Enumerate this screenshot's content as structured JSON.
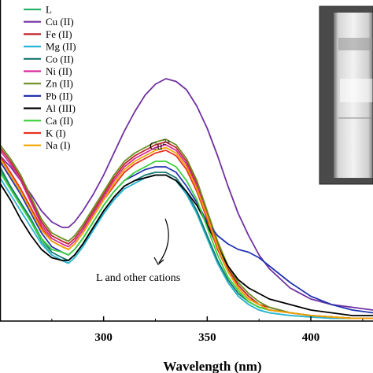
{
  "chart_data": {
    "type": "line",
    "xlabel": "Wavelength (nm)",
    "ylabel": "",
    "xlim": [
      250,
      430
    ],
    "ylim": [
      0,
      1
    ],
    "xticks": [
      300,
      350,
      400
    ],
    "legend_position": "top-left",
    "grid": false,
    "annotations": {
      "cu_peak_base": "Cu",
      "cu_peak_sup": "2+",
      "others": "L and other cations"
    },
    "inset": {
      "type": "photo",
      "content": "cuvette"
    },
    "x": [
      250,
      255,
      260,
      265,
      270,
      275,
      280,
      283,
      286,
      290,
      295,
      300,
      305,
      310,
      315,
      320,
      325,
      330,
      335,
      340,
      345,
      350,
      355,
      360,
      365,
      370,
      375,
      380,
      390,
      400,
      410,
      420,
      430
    ],
    "series": [
      {
        "name": "L",
        "color": "#2db36a",
        "values": [
          0.55,
          0.48,
          0.42,
          0.36,
          0.29,
          0.24,
          0.22,
          0.21,
          0.23,
          0.27,
          0.33,
          0.39,
          0.44,
          0.48,
          0.5,
          0.52,
          0.53,
          0.53,
          0.51,
          0.46,
          0.39,
          0.3,
          0.21,
          0.14,
          0.09,
          0.06,
          0.04,
          0.03,
          0.02,
          0.015,
          0.01,
          0.01,
          0.01
        ]
      },
      {
        "name": "Cu (II)",
        "color": "#7030a0",
        "values": [
          0.6,
          0.56,
          0.51,
          0.46,
          0.4,
          0.36,
          0.34,
          0.34,
          0.36,
          0.4,
          0.46,
          0.53,
          0.61,
          0.69,
          0.76,
          0.82,
          0.86,
          0.88,
          0.87,
          0.84,
          0.78,
          0.7,
          0.6,
          0.49,
          0.39,
          0.31,
          0.24,
          0.19,
          0.12,
          0.08,
          0.06,
          0.05,
          0.04
        ]
      },
      {
        "name": "Fe (II)",
        "color": "#c0272d",
        "values": [
          0.63,
          0.58,
          0.52,
          0.44,
          0.36,
          0.31,
          0.29,
          0.28,
          0.3,
          0.34,
          0.4,
          0.46,
          0.52,
          0.57,
          0.6,
          0.62,
          0.64,
          0.65,
          0.63,
          0.58,
          0.5,
          0.39,
          0.28,
          0.19,
          0.13,
          0.09,
          0.06,
          0.05,
          0.03,
          0.02,
          0.015,
          0.01,
          0.01
        ]
      },
      {
        "name": "Mg (II)",
        "color": "#2bb5d8",
        "values": [
          0.52,
          0.46,
          0.4,
          0.34,
          0.28,
          0.24,
          0.22,
          0.21,
          0.23,
          0.27,
          0.33,
          0.39,
          0.44,
          0.48,
          0.5,
          0.52,
          0.53,
          0.53,
          0.51,
          0.46,
          0.39,
          0.3,
          0.21,
          0.14,
          0.09,
          0.06,
          0.04,
          0.03,
          0.02,
          0.015,
          0.01,
          0.01,
          0.01
        ]
      },
      {
        "name": "Co (II)",
        "color": "#16766f",
        "values": [
          0.56,
          0.49,
          0.43,
          0.37,
          0.3,
          0.25,
          0.23,
          0.22,
          0.24,
          0.28,
          0.34,
          0.4,
          0.45,
          0.49,
          0.51,
          0.53,
          0.54,
          0.54,
          0.52,
          0.47,
          0.4,
          0.31,
          0.22,
          0.15,
          0.1,
          0.07,
          0.05,
          0.04,
          0.03,
          0.02,
          0.015,
          0.01,
          0.01
        ]
      },
      {
        "name": "Ni (II)",
        "color": "#d62b9a",
        "values": [
          0.62,
          0.57,
          0.51,
          0.43,
          0.35,
          0.3,
          0.28,
          0.27,
          0.29,
          0.33,
          0.39,
          0.45,
          0.51,
          0.56,
          0.59,
          0.61,
          0.63,
          0.64,
          0.62,
          0.57,
          0.49,
          0.38,
          0.27,
          0.18,
          0.12,
          0.08,
          0.06,
          0.04,
          0.03,
          0.02,
          0.015,
          0.01,
          0.01
        ]
      },
      {
        "name": "Zn (II)",
        "color": "#6b8e23",
        "values": [
          0.64,
          0.59,
          0.53,
          0.45,
          0.37,
          0.32,
          0.3,
          0.29,
          0.31,
          0.35,
          0.41,
          0.47,
          0.53,
          0.58,
          0.61,
          0.63,
          0.65,
          0.66,
          0.64,
          0.59,
          0.51,
          0.4,
          0.29,
          0.2,
          0.14,
          0.1,
          0.07,
          0.05,
          0.03,
          0.02,
          0.015,
          0.01,
          0.01
        ]
      },
      {
        "name": "Pb (II)",
        "color": "#2333b0",
        "values": [
          0.58,
          0.52,
          0.46,
          0.39,
          0.32,
          0.27,
          0.25,
          0.24,
          0.26,
          0.3,
          0.36,
          0.42,
          0.47,
          0.51,
          0.53,
          0.55,
          0.56,
          0.56,
          0.54,
          0.49,
          0.43,
          0.36,
          0.31,
          0.28,
          0.26,
          0.25,
          0.23,
          0.2,
          0.14,
          0.09,
          0.06,
          0.04,
          0.03
        ]
      },
      {
        "name": "Al (III)",
        "color": "#000000",
        "values": [
          0.5,
          0.44,
          0.37,
          0.31,
          0.26,
          0.23,
          0.22,
          0.22,
          0.24,
          0.28,
          0.34,
          0.4,
          0.45,
          0.49,
          0.51,
          0.52,
          0.53,
          0.53,
          0.51,
          0.47,
          0.42,
          0.35,
          0.27,
          0.2,
          0.15,
          0.12,
          0.1,
          0.08,
          0.06,
          0.04,
          0.03,
          0.02,
          0.02
        ]
      },
      {
        "name": "Ca (II)",
        "color": "#3ad13a",
        "values": [
          0.54,
          0.48,
          0.42,
          0.36,
          0.3,
          0.26,
          0.25,
          0.24,
          0.26,
          0.3,
          0.36,
          0.42,
          0.47,
          0.51,
          0.54,
          0.56,
          0.58,
          0.58,
          0.56,
          0.51,
          0.44,
          0.34,
          0.24,
          0.16,
          0.11,
          0.07,
          0.05,
          0.04,
          0.03,
          0.02,
          0.015,
          0.01,
          0.01
        ]
      },
      {
        "name": "K (I)",
        "color": "#e8321e",
        "values": [
          0.6,
          0.54,
          0.48,
          0.41,
          0.34,
          0.29,
          0.27,
          0.26,
          0.28,
          0.32,
          0.38,
          0.44,
          0.49,
          0.54,
          0.57,
          0.59,
          0.61,
          0.62,
          0.6,
          0.55,
          0.47,
          0.37,
          0.26,
          0.18,
          0.12,
          0.08,
          0.06,
          0.04,
          0.03,
          0.02,
          0.015,
          0.01,
          0.01
        ]
      },
      {
        "name": "Na (I)",
        "color": "#f0a500",
        "values": [
          0.59,
          0.53,
          0.47,
          0.4,
          0.33,
          0.29,
          0.27,
          0.26,
          0.28,
          0.32,
          0.38,
          0.44,
          0.5,
          0.55,
          0.58,
          0.6,
          0.62,
          0.63,
          0.61,
          0.56,
          0.48,
          0.38,
          0.27,
          0.18,
          0.12,
          0.08,
          0.06,
          0.04,
          0.03,
          0.02,
          0.015,
          0.01,
          0.01
        ]
      }
    ]
  }
}
